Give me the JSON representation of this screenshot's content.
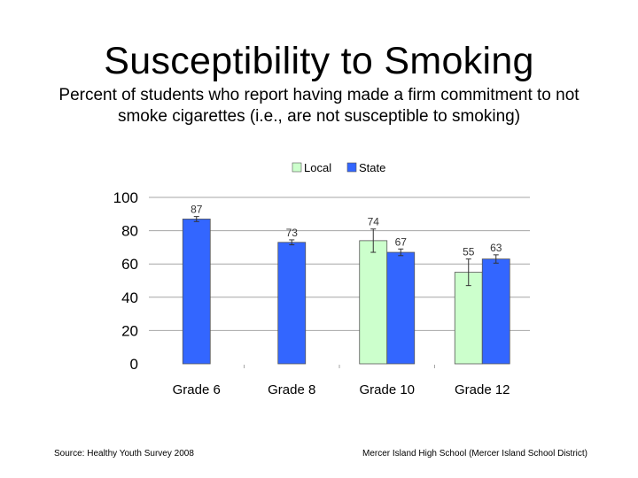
{
  "slide": {
    "title": "Susceptibility to Smoking",
    "subtitle": "Percent of students who report having made a firm commitment to not smoke cigarettes (i.e., are not susceptible to smoking)",
    "source": "Source: Healthy Youth Survey 2008",
    "credit": "Mercer Island High School (Mercer Island School District)"
  },
  "chart_data": {
    "type": "bar",
    "categories": [
      "Grade 6",
      "Grade 8",
      "Grade 10",
      "Grade 12"
    ],
    "series": [
      {
        "name": "Local",
        "values": [
          null,
          null,
          74,
          55
        ],
        "error": [
          null,
          null,
          7,
          8
        ],
        "color": "#ccffcc"
      },
      {
        "name": "State",
        "values": [
          87,
          73,
          67,
          63
        ],
        "error": [
          1.5,
          1.5,
          2,
          2.5
        ],
        "color": "#3366ff"
      }
    ],
    "yticks": [
      0,
      20,
      40,
      60,
      80,
      100
    ],
    "ylim": [
      0,
      100
    ],
    "grid": true,
    "legend": "top"
  }
}
